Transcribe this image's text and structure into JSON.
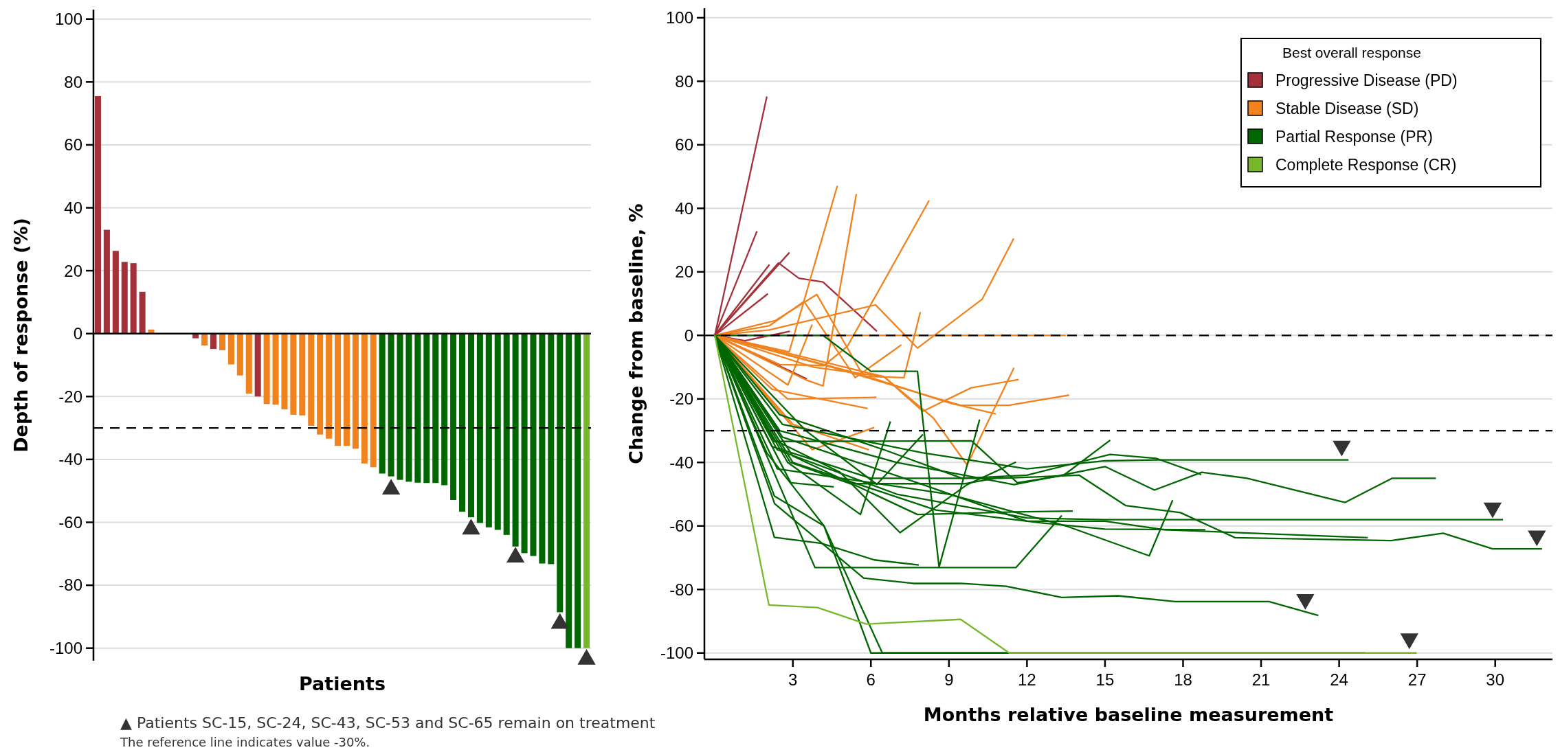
{
  "chart_data": [
    {
      "type": "bar",
      "xlabel": "Patients",
      "ylabel": "Depth of response (%)",
      "ylim": [
        -104,
        103
      ],
      "yticks": [
        -100,
        -80,
        -60,
        -40,
        -20,
        0,
        20,
        40,
        60,
        80,
        100
      ],
      "grid": "y",
      "categories": [
        null,
        null,
        null,
        null,
        null,
        null,
        null,
        null,
        null,
        null,
        null,
        null,
        null,
        null,
        null,
        null,
        null,
        null,
        null,
        null,
        null,
        null,
        null,
        null,
        null,
        null,
        null,
        null,
        null,
        null,
        null,
        null,
        null,
        null,
        null,
        null,
        null,
        null,
        null,
        null,
        null,
        null,
        null,
        null,
        null,
        null,
        null,
        null,
        null,
        null,
        null,
        null,
        null,
        null,
        null,
        null
      ],
      "ref_lines": [
        {
          "axis": "y",
          "value": -30,
          "line_style": "dashed",
          "color": "#000000"
        }
      ],
      "series": [
        {
          "type": "bar",
          "values": [
            75.5,
            33,
            26.3,
            22.8,
            22.4,
            13.3,
            1.3,
            0,
            0,
            0,
            0,
            -1.5,
            -3.8,
            -4.9,
            -5.3,
            -9.8,
            -13.3,
            -19.1,
            -20,
            -22.4,
            -22.6,
            -24.1,
            -25.8,
            -26,
            -29.3,
            -32.1,
            -33.4,
            -35.7,
            -35.7,
            -36.6,
            -41.3,
            -42.5,
            -44.5,
            -45.4,
            -46.5,
            -47.1,
            -47.4,
            -47.5,
            -47.5,
            -48.2,
            -52.9,
            -56.6,
            -58.4,
            -60.2,
            -61.6,
            -62.4,
            -64,
            -67.7,
            -69.8,
            -70.7,
            -73.1,
            -73.3,
            -88.6,
            -100,
            -100,
            -100
          ],
          "colors": [
            "#a4313a",
            "#a4313a",
            "#a4313a",
            "#a4313a",
            "#a4313a",
            "#a4313a",
            "#f0831e",
            "#f0831e",
            "#f0831e",
            "#f0831e",
            "#f0831e",
            "#a4313a",
            "#f0831e",
            "#a4313a",
            "#f0831e",
            "#f0831e",
            "#f0831e",
            "#f0831e",
            "#a4313a",
            "#f0831e",
            "#f0831e",
            "#f0831e",
            "#f0831e",
            "#f0831e",
            "#f0831e",
            "#f0831e",
            "#f0831e",
            "#f0831e",
            "#f0831e",
            "#f0831e",
            "#f0831e",
            "#f0831e",
            "#006600",
            "#006600",
            "#006600",
            "#006600",
            "#006600",
            "#006600",
            "#006600",
            "#006600",
            "#006600",
            "#006600",
            "#006600",
            "#006600",
            "#006600",
            "#006600",
            "#006600",
            "#006600",
            "#006600",
            "#006600",
            "#006600",
            "#006600",
            "#006600",
            "#006600",
            "#006600",
            "#76b82a"
          ]
        },
        {
          "type": "scatter",
          "color": "#333333",
          "marker": "triangle",
          "values": [
            null,
            null,
            null,
            null,
            null,
            null,
            null,
            null,
            null,
            null,
            null,
            null,
            null,
            null,
            null,
            null,
            null,
            null,
            null,
            null,
            null,
            null,
            null,
            null,
            null,
            null,
            null,
            null,
            null,
            null,
            null,
            null,
            null,
            -49.5,
            null,
            null,
            null,
            null,
            null,
            null,
            null,
            null,
            -62.2,
            null,
            null,
            null,
            null,
            -71.1,
            null,
            null,
            null,
            null,
            -92.2,
            null,
            null,
            -103.6
          ]
        }
      ],
      "annotations": [
        "▲ Patients SC-15, SC-24, SC-43, SC-53 and SC-65 remain on treatment",
        "The reference line indicates value -30%."
      ]
    },
    {
      "type": "line",
      "xlabel": "Months relative baseline measurement",
      "ylabel": "Change from baseline, %",
      "xlim": [
        -0.4,
        32.2
      ],
      "xticks": [
        3,
        6,
        9,
        12,
        15,
        18,
        21,
        24,
        27,
        30
      ],
      "ylim": [
        -102,
        103
      ],
      "yticks": [
        -100,
        -80,
        -60,
        -40,
        -20,
        0,
        20,
        40,
        60,
        80,
        100
      ],
      "grid": "y",
      "legend": "top right",
      "legend_title": "Best overall response",
      "line_style": "solid",
      "ref_lines": [
        {
          "axis": "y",
          "value": 0,
          "line_style": "dashed",
          "color": "#000000"
        },
        {
          "axis": "y",
          "value": -30,
          "line_style": "dashed",
          "color": "#000000"
        }
      ],
      "series": [
        {
          "name": "Progressive Disease (PD)",
          "color": "#a4313a",
          "x": [
            0,
            2.0
          ],
          "values": [
            0,
            75.2
          ]
        },
        {
          "color": "#a4313a",
          "x": [
            0,
            1.62
          ],
          "values": [
            0,
            32.8
          ]
        },
        {
          "color": "#a4313a",
          "x": [
            0,
            2.87
          ],
          "values": [
            0,
            26.1
          ]
        },
        {
          "color": "#a4313a",
          "x": [
            0,
            2.1
          ],
          "values": [
            0,
            22.3
          ]
        },
        {
          "color": "#a4313a",
          "x": [
            0,
            2.04
          ],
          "values": [
            0,
            13.1
          ]
        },
        {
          "color": "#a4313a",
          "x": [
            0,
            2.45,
            3.23,
            4.16,
            6.23
          ],
          "values": [
            0,
            22.8,
            18,
            16.8,
            1.3
          ]
        },
        {
          "color": "#a4313a",
          "x": [
            0,
            1.15,
            2.89
          ],
          "values": [
            0,
            -1.7,
            1.3
          ]
        },
        {
          "color": "#a4313a",
          "x": [
            0,
            3.54
          ],
          "values": [
            0,
            -13.7
          ]
        },
        {
          "name": "Stable Disease (SD)",
          "color": "#f0831e",
          "x": [
            0,
            2.86,
            4.71
          ],
          "values": [
            0,
            -5.2,
            47.1
          ]
        },
        {
          "color": "#f0831e",
          "x": [
            0,
            3.5,
            4.16,
            5.44
          ],
          "values": [
            0,
            -14,
            -15.9,
            44.5
          ]
        },
        {
          "color": "#f0831e",
          "x": [
            0,
            2.5,
            4.2,
            5.1,
            8.24
          ],
          "values": [
            0,
            -9.2,
            -9.5,
            -3.4,
            42.5
          ]
        },
        {
          "color": "#f0831e",
          "x": [
            0,
            2.09,
            6.18,
            7.79,
            10.28,
            11.49
          ],
          "values": [
            0,
            1.7,
            9.6,
            -4,
            11.4,
            30.5
          ]
        },
        {
          "color": "#f0831e",
          "x": [
            0,
            2.34,
            3.92,
            5.72,
            7.27,
            7.9
          ],
          "values": [
            0,
            4.7,
            12.9,
            -12.9,
            -13.3,
            7.3
          ]
        },
        {
          "color": "#f0831e",
          "x": [
            0,
            2.09,
            3.43,
            5.4,
            7.17
          ],
          "values": [
            0,
            3,
            10.7,
            -13.3,
            -3
          ]
        },
        {
          "color": "#f0831e",
          "x": [
            0,
            2.81,
            3.74
          ],
          "values": [
            0,
            -15.6,
            3.4
          ]
        },
        {
          "color": "#f0831e",
          "x": [
            0,
            13.5
          ],
          "values": [
            0,
            0
          ]
        },
        {
          "color": "#f0831e",
          "x": [
            0,
            6.5,
            8.0,
            9.86,
            11.68
          ],
          "values": [
            0,
            -13,
            -23.9,
            -16.5,
            -13.9
          ]
        },
        {
          "color": "#f0831e",
          "x": [
            0,
            4.5,
            8.4,
            9.45,
            11.3,
            13.62
          ],
          "values": [
            0,
            -10,
            -19.5,
            -22,
            -22,
            -18.8
          ]
        },
        {
          "color": "#f0831e",
          "x": [
            0,
            5.5,
            9.04,
            10.8
          ],
          "values": [
            0,
            -12,
            -21.3,
            -24.7
          ]
        },
        {
          "color": "#f0831e",
          "x": [
            0,
            3.8,
            6.5,
            8.4,
            9.7,
            11.5
          ],
          "values": [
            0,
            -10,
            -13,
            -26,
            -40.8,
            -10.2
          ]
        },
        {
          "color": "#f0831e",
          "x": [
            0,
            2.8,
            6.21
          ],
          "values": [
            0,
            -20,
            -19.5
          ]
        },
        {
          "color": "#f0831e",
          "x": [
            0,
            3.0,
            5.92
          ],
          "values": [
            0,
            -28,
            -36
          ]
        },
        {
          "color": "#f0831e",
          "x": [
            0,
            3.74,
            6.13
          ],
          "values": [
            0,
            -36,
            -29
          ]
        },
        {
          "color": "#f0831e",
          "x": [
            0,
            2.2,
            5.87
          ],
          "values": [
            0,
            -17,
            -23
          ]
        },
        {
          "name": "Partial Response (PR)",
          "color": "#006600",
          "x": [
            0,
            4.16,
            6.0,
            7.79,
            8.62,
            10.18
          ],
          "values": [
            0,
            0,
            -11.3,
            -11.3,
            -73,
            -26.5
          ]
        },
        {
          "color": "#006600",
          "x": [
            0,
            2.0,
            4.2,
            6.0,
            25.0
          ],
          "values": [
            0,
            -37,
            -60,
            -100,
            -100
          ]
        },
        {
          "color": "#006600",
          "x": [
            0,
            2.29,
            4.2,
            6.44,
            11.3
          ],
          "values": [
            0,
            -50.6,
            -60,
            -100,
            -100
          ]
        },
        {
          "color": "#006600",
          "x": [
            0,
            3.85,
            11.58,
            13.34
          ],
          "values": [
            0,
            -73.1,
            -73.1,
            -56.7
          ]
        },
        {
          "color": "#006600",
          "x": [
            0,
            2.29,
            4.1,
            6.13,
            7.84
          ],
          "values": [
            0,
            -63.6,
            -65.5,
            -70.7,
            -72.3
          ]
        },
        {
          "color": "#006600",
          "x": [
            0,
            2.3,
            5.72,
            7.63,
            9.45,
            11.2,
            13.34,
            15.5,
            17.7,
            21.3,
            23.2
          ],
          "values": [
            0,
            -53,
            -76.4,
            -78.1,
            -78.1,
            -79,
            -82.5,
            -82,
            -83.8,
            -83.8,
            -88.2
          ]
        },
        {
          "color": "#006600",
          "x": [
            0,
            2.8,
            5.6,
            6.75
          ],
          "values": [
            0,
            -40,
            -56.4,
            -27.1
          ]
        },
        {
          "color": "#006600",
          "x": [
            0,
            2.3,
            4.8,
            7.12,
            9.7,
            11.58
          ],
          "values": [
            0,
            -33,
            -43,
            -62.1,
            -47,
            -39.9
          ]
        },
        {
          "color": "#006600",
          "x": [
            0,
            2.9,
            5.2,
            9.6,
            11.1
          ],
          "values": [
            0,
            -40,
            -46.7,
            -46.7,
            -44.5
          ]
        },
        {
          "color": "#006600",
          "x": [
            0,
            2.92,
            4.57
          ],
          "values": [
            0,
            -46.4,
            -47.7
          ]
        },
        {
          "color": "#006600",
          "x": [
            0,
            3.0,
            7.79,
            11.52,
            13.76
          ],
          "values": [
            0,
            -38,
            -56.4,
            -55.6,
            -55.3
          ]
        },
        {
          "color": "#006600",
          "x": [
            0,
            3.5,
            6.23,
            8.0
          ],
          "values": [
            0,
            -30,
            -46.9,
            -31.2
          ]
        },
        {
          "color": "#006600",
          "x": [
            0,
            2.29,
            9.87,
            11.63,
            13.4,
            15.2
          ],
          "values": [
            0,
            -33.4,
            -33.2,
            -46.4,
            -44.1,
            -33
          ]
        },
        {
          "color": "#006600",
          "x": [
            0,
            2.5,
            6.5,
            9.5,
            12.0,
            15.2,
            16.96,
            18.7
          ],
          "values": [
            0,
            -25,
            -36,
            -45,
            -44,
            -37.5,
            -38.7,
            -43.8
          ]
        },
        {
          "color": "#006600",
          "x": [
            0,
            2.2,
            6.0,
            11.0,
            14.0,
            15.8,
            17.9,
            20.0,
            26.0,
            28.0,
            29.9,
            31.8
          ],
          "values": [
            0,
            -35,
            -45,
            -45,
            -44,
            -53.6,
            -55.8,
            -63.7,
            -64.6,
            -62.3,
            -67.2,
            -67.2
          ]
        },
        {
          "color": "#006600",
          "x": [
            0,
            2.5,
            7.0,
            11.5,
            15.0,
            16.9,
            18.72,
            20.46,
            24.23,
            26.03,
            27.72
          ],
          "values": [
            0,
            -30,
            -40,
            -47,
            -41.3,
            -48.7,
            -43.1,
            -45,
            -52.6,
            -45,
            -45
          ]
        },
        {
          "color": "#006600",
          "x": [
            0,
            2.4,
            7.0,
            12.0,
            15.0,
            30.3
          ],
          "values": [
            0,
            -36,
            -50,
            -57.5,
            -58,
            -58
          ]
        },
        {
          "color": "#006600",
          "x": [
            0,
            2.6,
            8.0,
            12.0,
            15.0,
            17.3,
            25.1
          ],
          "values": [
            0,
            -32,
            -47,
            -58.5,
            -58.5,
            -61.2,
            -63.7
          ]
        },
        {
          "color": "#006600",
          "x": [
            0,
            3.0,
            8.5,
            12.5,
            15.0,
            18.86
          ],
          "values": [
            0,
            -40,
            -55,
            -59,
            -61,
            -61.2
          ]
        },
        {
          "color": "#006600",
          "x": [
            0,
            2.4,
            9.0,
            13.5,
            16.7,
            17.6
          ],
          "values": [
            0,
            -42,
            -50,
            -60,
            -69.4,
            -51.9
          ]
        },
        {
          "color": "#006600",
          "x": [
            0,
            2.6,
            8.0,
            12.0,
            15.0,
            17.0,
            24.36
          ],
          "values": [
            0,
            -28,
            -37,
            -42,
            -39.5,
            -39.2,
            -39.2
          ]
        },
        {
          "name": "Complete Response (CR)",
          "color": "#76b82a",
          "x": [
            0,
            2.08,
            3.95,
            5.82,
            9.45,
            11.32,
            26.98
          ],
          "values": [
            0,
            -84.9,
            -85.7,
            -90.9,
            -89.4,
            -100,
            -100
          ]
        },
        {
          "type": "scatter",
          "color": "#333333",
          "marker": "triangle",
          "x": [
            24.1,
            29.9,
            31.6,
            22.7,
            26.7
          ],
          "values": [
            -34.8,
            -54.3,
            -63.1,
            -83.1,
            -95.5
          ]
        }
      ]
    }
  ]
}
